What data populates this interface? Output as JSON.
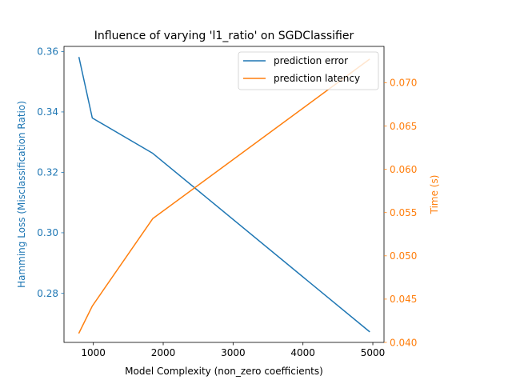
{
  "chart_data": {
    "type": "line",
    "title": "Influence of varying 'l1_ratio' on SGDClassifier",
    "xlabel": "Model Complexity (non_zero coefficients)",
    "ylabel_left": "Hamming Loss (Misclassification Ratio)",
    "ylabel_right": "Time (s)",
    "xlim": [
      580,
      5160
    ],
    "ylim_left": [
      0.2637,
      0.3617
    ],
    "ylim_right": [
      0.04,
      0.0742
    ],
    "x_ticks": [
      1000,
      2000,
      3000,
      4000,
      5000
    ],
    "y_ticks_left": [
      0.28,
      0.3,
      0.32,
      0.34,
      0.36
    ],
    "y_ticks_right": [
      0.04,
      0.045,
      0.05,
      0.055,
      0.06,
      0.065,
      0.07
    ],
    "x_tick_labels": [
      "1000",
      "2000",
      "3000",
      "4000",
      "5000"
    ],
    "y_tick_labels_left": [
      "0.28",
      "0.30",
      "0.32",
      "0.34",
      "0.36"
    ],
    "y_tick_labels_right": [
      "0.040",
      "0.045",
      "0.050",
      "0.055",
      "0.060",
      "0.065",
      "0.070"
    ],
    "legend_position": "top-right",
    "grid": false,
    "series": [
      {
        "name": "prediction error",
        "axis": "left",
        "color": "#1f77b4",
        "x": [
          795,
          985,
          1850,
          4950
        ],
        "y": [
          0.358,
          0.338,
          0.3263,
          0.2673
        ]
      },
      {
        "name": "prediction latency",
        "axis": "right",
        "color": "#ff7f0e",
        "x": [
          795,
          985,
          1850,
          4950
        ],
        "y": [
          0.0411,
          0.0442,
          0.0543,
          0.0727
        ]
      }
    ]
  }
}
